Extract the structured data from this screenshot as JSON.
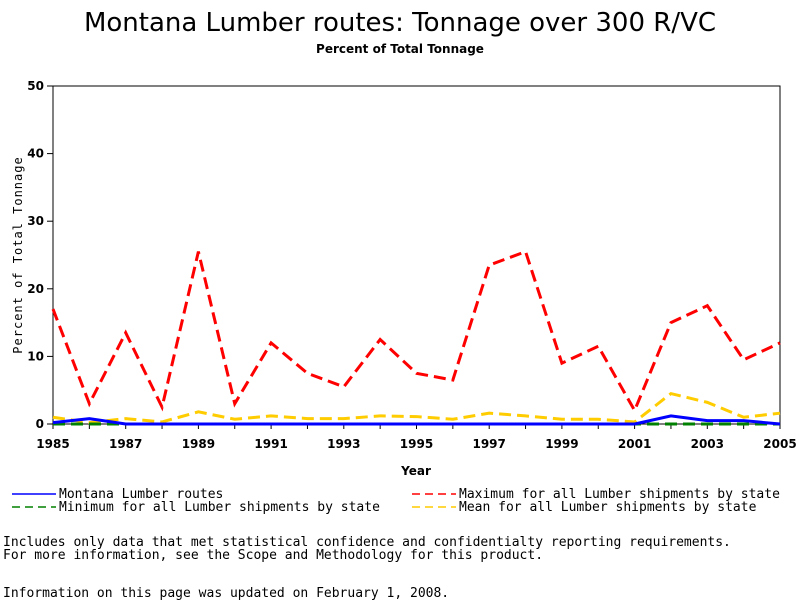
{
  "chart_data": {
    "type": "line",
    "title": "Montana Lumber routes: Tonnage over 300 R/VC",
    "subtitle": "Percent of Total Tonnage",
    "xlabel": "Year",
    "ylabel": "Percent of Total Tonnage",
    "xlim": [
      1985,
      2005
    ],
    "ylim": [
      0,
      50
    ],
    "xticks": [
      "1985",
      "1987",
      "1989",
      "1991",
      "1993",
      "1995",
      "1997",
      "1999",
      "2001",
      "2003",
      "2005"
    ],
    "yticks": [
      "0",
      "10",
      "20",
      "30",
      "40",
      "50"
    ],
    "grid": false,
    "legend_position": "bottom",
    "x": [
      1985,
      1986,
      1987,
      1988,
      1989,
      1990,
      1991,
      1992,
      1993,
      1994,
      1995,
      1996,
      1997,
      1998,
      1999,
      2000,
      2001,
      2002,
      2003,
      2004,
      2005
    ],
    "series": [
      {
        "name": "Montana Lumber routes",
        "color": "#0000ff",
        "style": "solid",
        "values": [
          0.2,
          0.8,
          0,
          0,
          0,
          0,
          0,
          0,
          0,
          0,
          0,
          0,
          0,
          0,
          0,
          0,
          0,
          1.2,
          0.5,
          0.5,
          0
        ]
      },
      {
        "name": "Maximum for all Lumber shipments by state",
        "color": "#ff0000",
        "style": "dashed",
        "values": [
          17,
          3,
          13.5,
          2.5,
          25.5,
          3,
          12,
          7.5,
          5.5,
          12.5,
          7.5,
          6.5,
          23.5,
          25.5,
          9,
          11.5,
          2,
          15,
          17.5,
          9.5,
          12
        ]
      },
      {
        "name": "Minimum for all Lumber shipments by state",
        "color": "#008000",
        "style": "dashed",
        "values": [
          0,
          0,
          0,
          0,
          0,
          0,
          0,
          0,
          0,
          0,
          0,
          0,
          0,
          0,
          0,
          0,
          0,
          0,
          0,
          0,
          0
        ]
      },
      {
        "name": "Mean for all Lumber shipments by state",
        "color": "#ffcc00",
        "style": "dashed",
        "values": [
          1,
          0.2,
          0.8,
          0.3,
          1.8,
          0.7,
          1.2,
          0.8,
          0.8,
          1.2,
          1.1,
          0.7,
          1.6,
          1.2,
          0.7,
          0.7,
          0.3,
          4.5,
          3.2,
          1,
          1.6
        ]
      }
    ]
  },
  "notes": {
    "line1": "Includes only data that met statistical confidence and confidentialty reporting requirements.",
    "line2": "For more information, see the Scope and Methodology for this product.",
    "line3": "Information on this page was updated on February 1, 2008."
  }
}
